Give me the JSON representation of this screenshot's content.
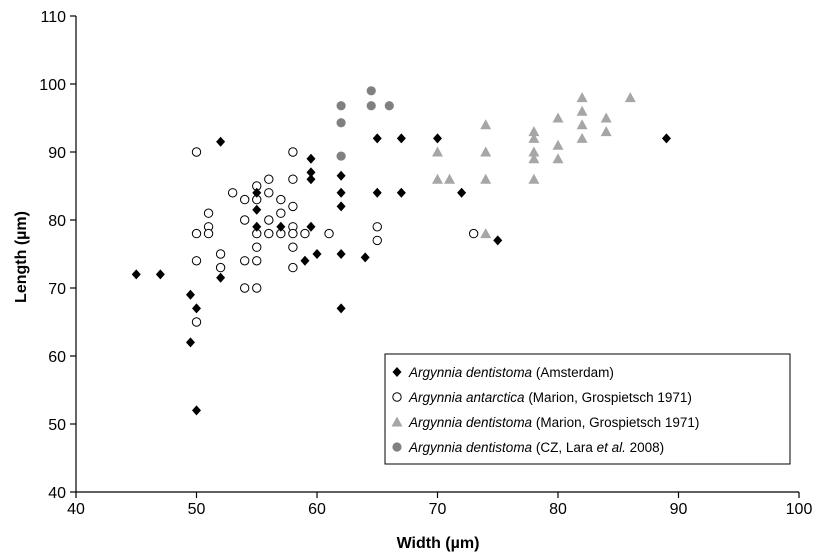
{
  "chart_data": {
    "type": "scatter",
    "xlabel": "Width (µm)",
    "ylabel": "Length (µm)",
    "xlim": [
      40,
      100
    ],
    "ylim": [
      40,
      110
    ],
    "xticks": [
      "40",
      "50",
      "60",
      "70",
      "80",
      "90",
      "100"
    ],
    "yticks": [
      "40",
      "50",
      "60",
      "70",
      "80",
      "90",
      "100",
      "110"
    ],
    "grid": false,
    "legend_position": "bottom-right",
    "series": [
      {
        "name": "Argynnia dentistoma (Amsterdam)",
        "legend": {
          "italic": "Argynnia dentistoma",
          "rest": " (Amsterdam)"
        },
        "marker": "diamond",
        "color": "#000000",
        "points": [
          [
            45,
            72
          ],
          [
            47,
            72
          ],
          [
            49.5,
            69
          ],
          [
            49.5,
            62
          ],
          [
            50,
            67
          ],
          [
            50,
            52
          ],
          [
            52,
            91.5
          ],
          [
            52,
            71.5
          ],
          [
            55,
            84
          ],
          [
            55,
            81.5
          ],
          [
            55,
            79
          ],
          [
            57,
            79
          ],
          [
            59,
            74
          ],
          [
            59.5,
            89
          ],
          [
            59.5,
            87
          ],
          [
            59.5,
            86
          ],
          [
            59.5,
            79
          ],
          [
            60,
            75
          ],
          [
            62,
            86.5
          ],
          [
            62,
            84
          ],
          [
            62,
            82
          ],
          [
            62,
            75
          ],
          [
            62,
            67
          ],
          [
            64,
            74.5
          ],
          [
            65,
            92
          ],
          [
            65,
            84
          ],
          [
            67,
            92
          ],
          [
            67,
            84
          ],
          [
            70,
            92
          ],
          [
            72,
            84
          ],
          [
            75,
            77
          ],
          [
            89,
            92
          ]
        ]
      },
      {
        "name": "Argynnia antarctica (Marion, Grospietsch 1971)",
        "legend": {
          "italic": "Argynnia antarctica",
          "rest": " (Marion, Grospietsch 1971)"
        },
        "marker": "circle-open",
        "color": "#000000",
        "points": [
          [
            50,
            90
          ],
          [
            50,
            78
          ],
          [
            50,
            74
          ],
          [
            50,
            65
          ],
          [
            51,
            81
          ],
          [
            51,
            79
          ],
          [
            51,
            78
          ],
          [
            52,
            75
          ],
          [
            52,
            73
          ],
          [
            53,
            84
          ],
          [
            54,
            83
          ],
          [
            54,
            80
          ],
          [
            54,
            74
          ],
          [
            54,
            70
          ],
          [
            55,
            85
          ],
          [
            55,
            83
          ],
          [
            55,
            78
          ],
          [
            55,
            76
          ],
          [
            55,
            74
          ],
          [
            55,
            70
          ],
          [
            56,
            86
          ],
          [
            56,
            84
          ],
          [
            56,
            80
          ],
          [
            56,
            78
          ],
          [
            57,
            83
          ],
          [
            57,
            81
          ],
          [
            57,
            78
          ],
          [
            58,
            90
          ],
          [
            58,
            86
          ],
          [
            58,
            82
          ],
          [
            58,
            79
          ],
          [
            58,
            78
          ],
          [
            58,
            76
          ],
          [
            58,
            73
          ],
          [
            59,
            78
          ],
          [
            61,
            78
          ],
          [
            65,
            79
          ],
          [
            65,
            77
          ],
          [
            73,
            78
          ]
        ]
      },
      {
        "name": "Argynnia dentistoma (Marion, Grospietsch 1971)",
        "legend": {
          "italic": "Argynnia dentistoma",
          "rest": " (Marion, Grospietsch 1971)"
        },
        "marker": "triangle",
        "color": "#a6a6a6",
        "points": [
          [
            70,
            90
          ],
          [
            70,
            86
          ],
          [
            71,
            86
          ],
          [
            74,
            94
          ],
          [
            74,
            90
          ],
          [
            74,
            86
          ],
          [
            74,
            78
          ],
          [
            78,
            93
          ],
          [
            78,
            92
          ],
          [
            78,
            90
          ],
          [
            78,
            89
          ],
          [
            78,
            86
          ],
          [
            80,
            95
          ],
          [
            80,
            91
          ],
          [
            80,
            89
          ],
          [
            82,
            98
          ],
          [
            82,
            96
          ],
          [
            82,
            94
          ],
          [
            82,
            92
          ],
          [
            84,
            95
          ],
          [
            84,
            93
          ],
          [
            86,
            98
          ]
        ]
      },
      {
        "name": "Argynnia dentistoma (CZ, Lara et al. 2008)",
        "legend": {
          "italic": "Argynnia dentistoma",
          "rest": " (CZ, Lara ",
          "italic2": "et al.",
          "rest2": " 2008)"
        },
        "marker": "circle-filled",
        "color": "#808080",
        "points": [
          [
            62,
            96.8
          ],
          [
            62,
            94.3
          ],
          [
            62,
            89.4
          ],
          [
            64.5,
            99
          ],
          [
            64.5,
            96.8
          ],
          [
            66,
            96.8
          ]
        ]
      }
    ]
  }
}
